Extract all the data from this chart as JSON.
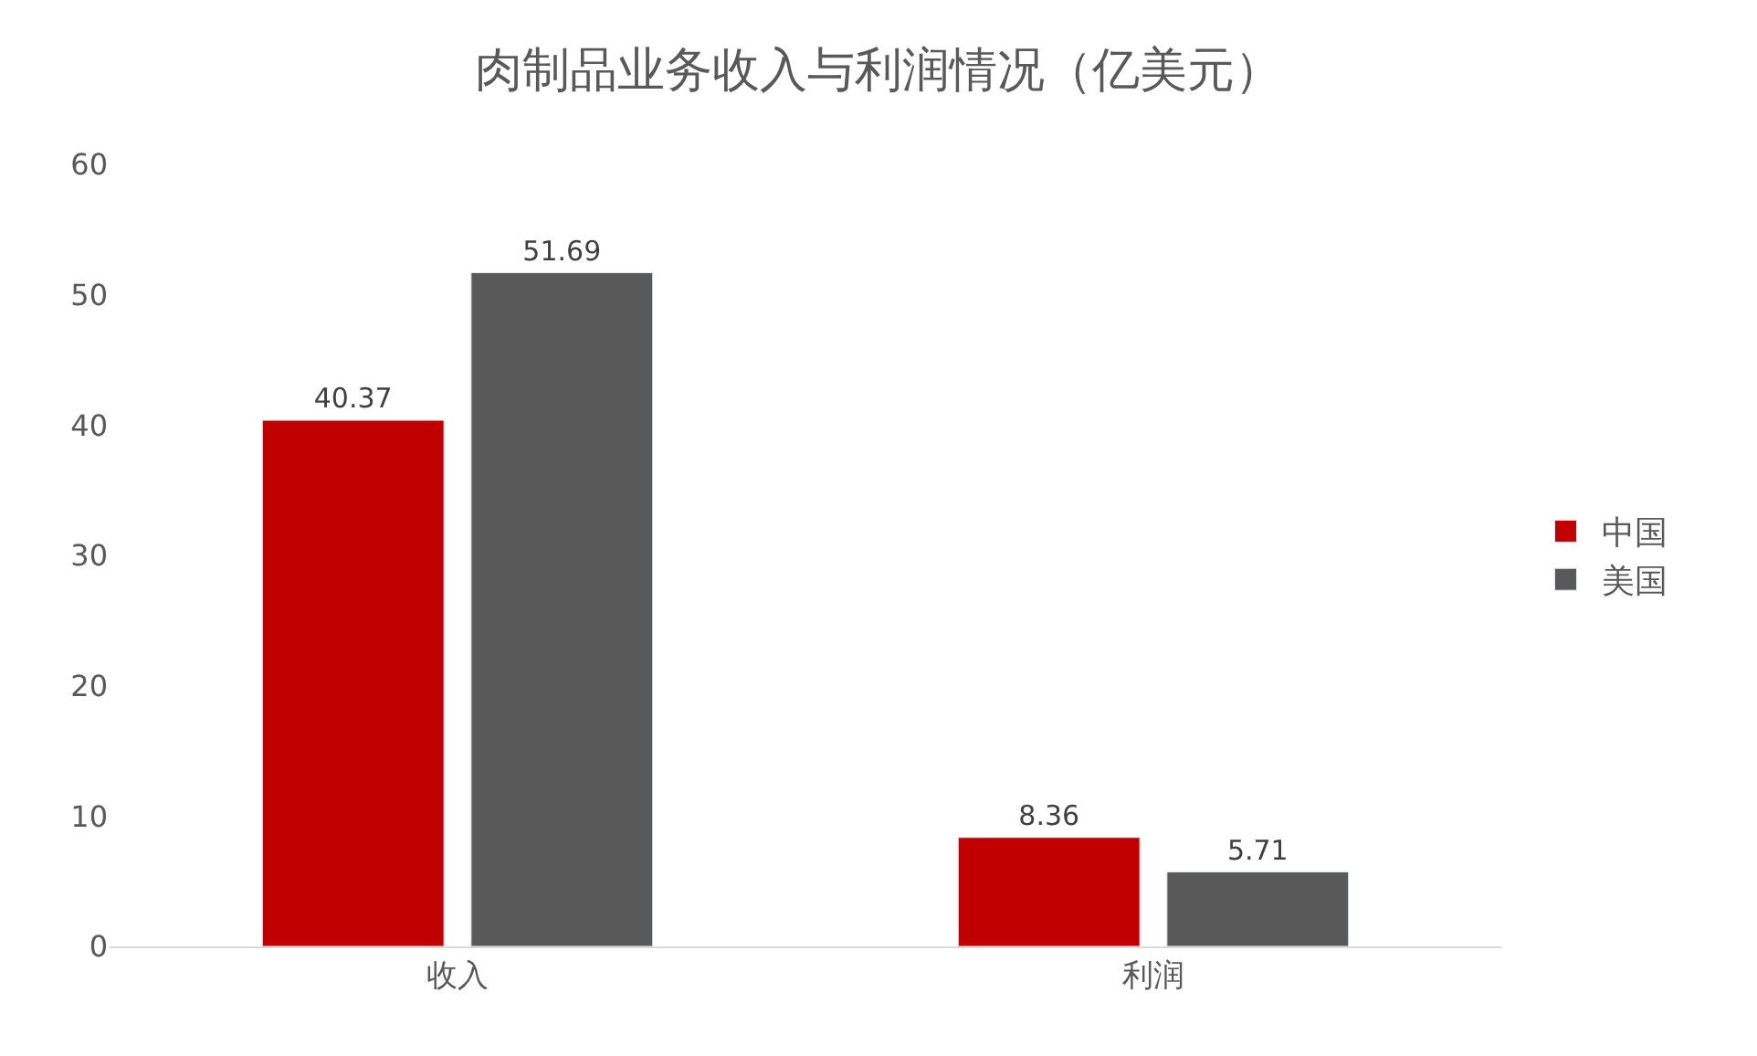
{
  "chart_data": {
    "type": "bar",
    "title": "肉制品业务收入与利润情况（亿美元）",
    "categories": [
      "收入",
      "利润"
    ],
    "series": [
      {
        "name": "中国",
        "color": "#c00000",
        "values": [
          40.37,
          8.36
        ]
      },
      {
        "name": "美国",
        "color": "#595959",
        "values": [
          51.69,
          5.71
        ]
      }
    ],
    "ylim": [
      0,
      60
    ],
    "yticks": [
      0,
      10,
      20,
      30,
      40,
      50,
      60
    ],
    "grid": false,
    "legend": "right",
    "data_labels": true
  }
}
